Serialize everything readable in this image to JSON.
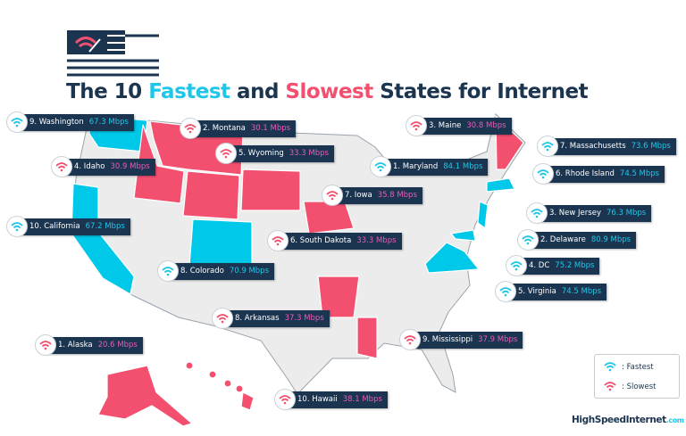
{
  "title": {
    "prefix": "The 10 ",
    "fastest": "Fastest",
    "middle": " and ",
    "slowest": "Slowest",
    "suffix": " States for Internet"
  },
  "colors": {
    "fastest": "#1ec6e8",
    "slowest": "#f2506e",
    "label_bg": "#1b3550",
    "map_grey": "#ececec"
  },
  "callouts": [
    {
      "type": "fast",
      "label": "9. Washington",
      "speed": "67.3 Mbps"
    },
    {
      "type": "slow",
      "label": "2. Montana",
      "speed": "30.1 Mbps"
    },
    {
      "type": "slow",
      "label": "3. Maine",
      "speed": "30.8 Mbps"
    },
    {
      "type": "slow",
      "label": "5. Wyoming",
      "speed": "33.3 Mbps"
    },
    {
      "type": "slow",
      "label": "4. Idaho",
      "speed": "30.9 Mbps"
    },
    {
      "type": "fast",
      "label": "1. Maryland",
      "speed": "84.1 Mbps"
    },
    {
      "type": "fast",
      "label": "7. Massachusetts",
      "speed": "73.6 Mbps"
    },
    {
      "type": "fast",
      "label": "6. Rhode Island",
      "speed": "74.5 Mbps"
    },
    {
      "type": "slow",
      "label": "7. Iowa",
      "speed": "35.8 Mbps"
    },
    {
      "type": "fast",
      "label": "3. New Jersey",
      "speed": "76.3 Mbps"
    },
    {
      "type": "fast",
      "label": "10. California",
      "speed": "67.2 Mbps"
    },
    {
      "type": "slow",
      "label": "6. South Dakota",
      "speed": "33.3 Mbps"
    },
    {
      "type": "fast",
      "label": "2. Delaware",
      "speed": "80.9 Mbps"
    },
    {
      "type": "fast",
      "label": "4. DC",
      "speed": "75.2 Mbps"
    },
    {
      "type": "fast",
      "label": "8. Colorado",
      "speed": "70.9 Mbps"
    },
    {
      "type": "fast",
      "label": "5. Virginia",
      "speed": "74.5 Mbps"
    },
    {
      "type": "slow",
      "label": "8. Arkansas",
      "speed": "37.3 Mbps"
    },
    {
      "type": "slow",
      "label": "9. Mississippi",
      "speed": "37.9 Mbps"
    },
    {
      "type": "slow",
      "label": "1. Alaska",
      "speed": "20.6 Mbps"
    },
    {
      "type": "slow",
      "label": "10. Hawaii",
      "speed": "38.1 Mbps"
    }
  ],
  "legend": {
    "fastest": ": Fastest",
    "slowest": ": Slowest"
  },
  "logo": {
    "name": "HighSpeedInternet",
    "tld": ".com"
  }
}
